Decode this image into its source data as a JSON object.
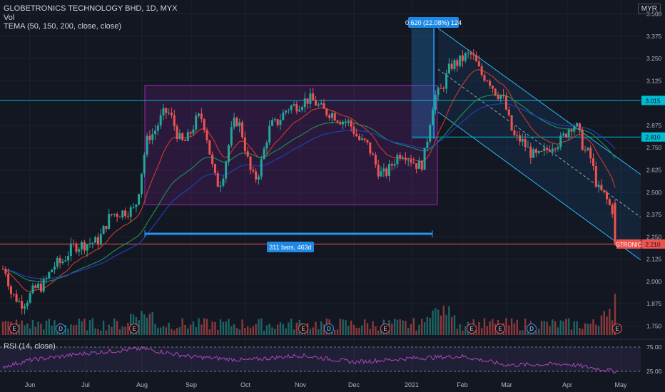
{
  "header": {
    "symbol_line": "GLOBETRONICS TECHNOLOGY BHD, 1D, MYX",
    "vol_label": "Vol",
    "tema_label": "TEMA (50, 150, 200, close, close)",
    "currency": "MYR"
  },
  "rsi": {
    "label": "RSI (14, close)",
    "ticks": [
      "75.00",
      "25.00"
    ]
  },
  "colors": {
    "background": "#131722",
    "grid": "#1e222d",
    "up": "#26a69a",
    "down": "#ef5350",
    "hline": "#00bcd4",
    "box": "#9c27b0",
    "channel": "#2196f3",
    "tema_fast": "#c0392b",
    "tema_mid": "#1b8a5a",
    "tema_slow": "#1f3fb8",
    "rsi_line": "#ab47bc"
  },
  "chart_data": {
    "type": "candlestick",
    "x_axis_labels": [
      "Jun",
      "Jul",
      "Aug",
      "Sep",
      "Oct",
      "Nov",
      "Dec",
      "2021",
      "Feb",
      "Mar",
      "Apr",
      "May"
    ],
    "y_ticks": [
      "3.500",
      "3.375",
      "3.250",
      "3.125",
      "2.875",
      "2.750",
      "2.625",
      "2.500",
      "2.375",
      "2.250",
      "2.125",
      "2.000",
      "1.875",
      "1.750"
    ],
    "ylim": [
      1.7,
      3.53
    ],
    "price_lines": [
      {
        "value": 3.015,
        "label": "3.015"
      },
      {
        "value": 2.81,
        "label": "2.810"
      },
      {
        "value": 2.21,
        "label": "2.210",
        "tag": "GTRONIC"
      }
    ],
    "range_box": {
      "high": 3.1,
      "low": 2.43
    },
    "measure_up_label": "0.620 (22.08%) 124",
    "measure_bars_label": "311 bars, 463d",
    "events": [
      {
        "label": "E",
        "at": "May"
      },
      {
        "label": "D",
        "at": "Jun"
      },
      {
        "label": "E",
        "at": "Aug"
      },
      {
        "label": "E",
        "at": "Oct"
      },
      {
        "label": "D",
        "at": "Nov"
      },
      {
        "label": "E",
        "at": "Dec"
      },
      {
        "label": "E",
        "at": "Feb"
      },
      {
        "label": "E",
        "at": "Mar"
      },
      {
        "label": "D",
        "at": "Mar"
      },
      {
        "label": "E",
        "at": "Apr"
      }
    ],
    "price_points": [
      [
        "May",
        2.07
      ],
      [
        "May",
        1.92
      ],
      [
        "May",
        1.88
      ],
      [
        "Jun",
        1.97
      ],
      [
        "Jun",
        2.1
      ],
      [
        "Jun",
        2.2
      ],
      [
        "Jul",
        2.22
      ],
      [
        "Jul",
        2.38
      ],
      [
        "Jul",
        2.4
      ],
      [
        "Aug",
        2.82
      ],
      [
        "Aug",
        2.95
      ],
      [
        "Aug",
        2.78
      ],
      [
        "Sep",
        2.92
      ],
      [
        "Sep",
        2.55
      ],
      [
        "Sep",
        2.9
      ],
      [
        "Oct",
        2.58
      ],
      [
        "Oct",
        2.88
      ],
      [
        "Oct",
        2.98
      ],
      [
        "Nov",
        3.02
      ],
      [
        "Nov",
        2.95
      ],
      [
        "Nov",
        2.9
      ],
      [
        "Dec",
        2.78
      ],
      [
        "Dec",
        2.6
      ],
      [
        "Dec",
        2.72
      ],
      [
        "2021",
        2.65
      ],
      [
        "2021",
        3.05
      ],
      [
        "2021",
        3.22
      ],
      [
        "Feb",
        3.27
      ],
      [
        "Feb",
        3.15
      ],
      [
        "Feb",
        3.05
      ],
      [
        "Mar",
        2.8
      ],
      [
        "Mar",
        2.7
      ],
      [
        "Mar",
        2.78
      ],
      [
        "Apr",
        2.88
      ],
      [
        "Apr",
        2.72
      ],
      [
        "Apr",
        2.5
      ],
      [
        "Apr",
        2.4
      ],
      [
        "May",
        2.21
      ]
    ],
    "rsi_points": [
      [
        "May",
        35
      ],
      [
        "Jun",
        48
      ],
      [
        "Jul",
        62
      ],
      [
        "Aug",
        72
      ],
      [
        "Sep",
        55
      ],
      [
        "Oct",
        48
      ],
      [
        "Nov",
        58
      ],
      [
        "Dec",
        44
      ],
      [
        "2021",
        52
      ],
      [
        "Feb",
        56
      ],
      [
        "Mar",
        38
      ],
      [
        "Apr",
        40
      ],
      [
        "May",
        25
      ]
    ]
  }
}
